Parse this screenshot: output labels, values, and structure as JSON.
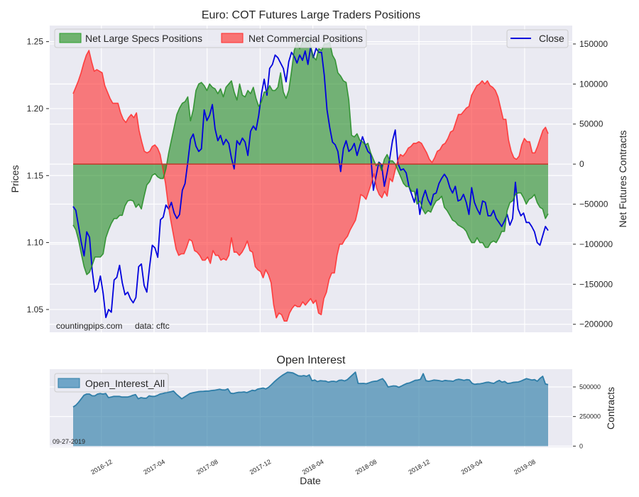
{
  "chart_data": [
    {
      "type": "area",
      "title": "Euro: COT Futures Large Traders Positions",
      "xlabel": "",
      "ylabel_left": "Prices",
      "ylabel_right": "Net Futures Contracts",
      "grid": true,
      "y_left_ticks": [
        "1.05",
        "1.10",
        "1.15",
        "1.20",
        "1.25"
      ],
      "y_left_tick_values": [
        1.05,
        1.1,
        1.15,
        1.2,
        1.25
      ],
      "y_left_lim": [
        1.033,
        1.262
      ],
      "y_right_ticks": [
        "150000",
        "100000",
        "50000",
        "0",
        "−50000",
        "−100000",
        "−150000",
        "−200000"
      ],
      "y_right_tick_values": [
        150000,
        100000,
        50000,
        0,
        -50000,
        -100000,
        -150000,
        -200000
      ],
      "y_right_lim": [
        -210000,
        173000
      ],
      "x_start": "2016-09-27",
      "x_end": "2019-09-24",
      "x_tick_labels": [
        "2016-12",
        "2017-04",
        "2017-08",
        "2017-12",
        "2018-04",
        "2018-08",
        "2018-12",
        "2019-04",
        "2019-08"
      ],
      "x_tick_dates": [
        "2016-12-01",
        "2017-04-01",
        "2017-08-01",
        "2017-12-01",
        "2018-04-01",
        "2018-08-01",
        "2018-12-01",
        "2019-04-01",
        "2019-08-01"
      ],
      "legend": {
        "left": [
          {
            "label": "Net Large Specs Positions",
            "color": "#2ca02c"
          },
          {
            "label": "Net Commercial Positions",
            "color": "#ff2b2b"
          }
        ],
        "right": [
          {
            "label": "Close",
            "color": "#0000dd"
          }
        ],
        "placement_left": "top-left",
        "placement_right": "top-right"
      },
      "annotations": [
        "countingpips.com",
        "data: cftc"
      ],
      "series": [
        {
          "name": "Net Large Specs Positions",
          "axis": "right",
          "values": [
            -76000,
            -82000,
            -95000,
            -112000,
            -128000,
            -138000,
            -135000,
            -126000,
            -116000,
            -116000,
            -116000,
            -112000,
            -92000,
            -82000,
            -74000,
            -68000,
            -68000,
            -64000,
            -64000,
            -52000,
            -46000,
            -45000,
            -46000,
            -54000,
            -50000,
            -56000,
            -40000,
            -26000,
            -22000,
            -14000,
            -12000,
            -16000,
            -18000,
            -18000,
            -6000,
            14000,
            30000,
            46000,
            62000,
            70000,
            76000,
            78000,
            84000,
            54000,
            68000,
            92000,
            100000,
            102000,
            98000,
            92000,
            100000,
            96000,
            94000,
            88000,
            94000,
            84000,
            96000,
            100000,
            104000,
            90000,
            80000,
            100000,
            86000,
            84000,
            92000,
            88000,
            96000,
            82000,
            72000,
            78000,
            90000,
            90000,
            98000,
            92000,
            92000,
            96000,
            114000,
            90000,
            82000,
            92000,
            116000,
            142000,
            152000,
            144000,
            152000,
            152000,
            158000,
            148000,
            134000,
            130000,
            144000,
            142000,
            150000,
            150000,
            152000,
            136000,
            130000,
            114000,
            110000,
            104000,
            102000,
            80000,
            36000,
            34000,
            38000,
            30000,
            28000,
            24000,
            26000,
            14000,
            6000,
            -2000,
            2000,
            -8000,
            6000,
            12000,
            4000,
            4000,
            0,
            -8000,
            -16000,
            -24000,
            -28000,
            -28000,
            -34000,
            -34000,
            -50000,
            -46000,
            -56000,
            -62000,
            -58000,
            -60000,
            -52000,
            -46000,
            -44000,
            -40000,
            -54000,
            -58000,
            -64000,
            -70000,
            -72000,
            -76000,
            -78000,
            -80000,
            -84000,
            -92000,
            -98000,
            -98000,
            -92000,
            -98000,
            -98000,
            -104000,
            -104000,
            -98000,
            -96000,
            -98000,
            -92000,
            -84000,
            -84000,
            -58000,
            -48000,
            -46000,
            -38000,
            -36000,
            -36000,
            -42000,
            -50000,
            -44000,
            -42000,
            -38000,
            -48000,
            -54000,
            -56000,
            -68000,
            -62000
          ]
        },
        {
          "name": "Net Commercial Positions",
          "axis": "right",
          "values": [
            88000,
            96000,
            104000,
            114000,
            126000,
            136000,
            142000,
            128000,
            116000,
            118000,
            116000,
            114000,
            98000,
            90000,
            82000,
            76000,
            76000,
            76000,
            64000,
            56000,
            52000,
            58000,
            62000,
            58000,
            64000,
            42000,
            28000,
            16000,
            14000,
            16000,
            22000,
            24000,
            20000,
            12000,
            -6000,
            -24000,
            -50000,
            -70000,
            -88000,
            -106000,
            -114000,
            -112000,
            -112000,
            -104000,
            -94000,
            -96000,
            -108000,
            -110000,
            -114000,
            -120000,
            -120000,
            -116000,
            -124000,
            -108000,
            -114000,
            -114000,
            -120000,
            -118000,
            -120000,
            -114000,
            -92000,
            -110000,
            -110000,
            -114000,
            -110000,
            -104000,
            -96000,
            -108000,
            -110000,
            -128000,
            -132000,
            -134000,
            -142000,
            -132000,
            -138000,
            -148000,
            -176000,
            -192000,
            -186000,
            -188000,
            -196000,
            -196000,
            -186000,
            -180000,
            -176000,
            -178000,
            -178000,
            -172000,
            -176000,
            -172000,
            -168000,
            -174000,
            -170000,
            -186000,
            -188000,
            -168000,
            -160000,
            -144000,
            -136000,
            -136000,
            -114000,
            -100000,
            -100000,
            -94000,
            -90000,
            -82000,
            -76000,
            -70000,
            -56000,
            -38000,
            -40000,
            -44000,
            -34000,
            -24000,
            -12000,
            -30000,
            -38000,
            -42000,
            -34000,
            -40000,
            -18000,
            -22000,
            -8000,
            4000,
            12000,
            10000,
            14000,
            20000,
            22000,
            26000,
            26000,
            28000,
            26000,
            20000,
            14000,
            6000,
            2000,
            8000,
            16000,
            18000,
            24000,
            26000,
            32000,
            40000,
            42000,
            52000,
            62000,
            62000,
            66000,
            70000,
            72000,
            86000,
            92000,
            98000,
            100000,
            104000,
            100000,
            104000,
            98000,
            96000,
            92000,
            84000,
            70000,
            56000,
            56000,
            30000,
            16000,
            8000,
            6000,
            10000,
            24000,
            32000,
            28000,
            28000,
            14000,
            14000,
            22000,
            32000,
            42000,
            46000,
            38000
          ]
        },
        {
          "name": "Close",
          "axis": "left",
          "values": [
            1.127,
            1.124,
            1.112,
            1.1,
            1.09,
            1.108,
            1.104,
            1.079,
            1.063,
            1.066,
            1.075,
            1.062,
            1.044,
            1.05,
            1.048,
            1.072,
            1.074,
            1.083,
            1.07,
            1.061,
            1.063,
            1.058,
            1.055,
            1.059,
            1.082,
            1.084,
            1.068,
            1.063,
            1.082,
            1.098,
            1.096,
            1.089,
            1.117,
            1.119,
            1.128,
            1.125,
            1.13,
            1.122,
            1.118,
            1.121,
            1.139,
            1.144,
            1.16,
            1.177,
            1.181,
            1.172,
            1.168,
            1.17,
            1.199,
            1.191,
            1.195,
            1.203,
            1.185,
            1.176,
            1.18,
            1.173,
            1.177,
            1.174,
            1.163,
            1.155,
            1.176,
            1.173,
            1.178,
            1.175,
            1.165,
            1.183,
            1.187,
            1.184,
            1.195,
            1.211,
            1.222,
            1.21,
            1.23,
            1.233,
            1.24,
            1.238,
            1.234,
            1.23,
            1.22,
            1.235,
            1.242,
            1.239,
            1.234,
            1.24,
            1.236,
            1.243,
            1.233,
            1.246,
            1.238,
            1.245,
            1.242,
            1.242,
            1.225,
            1.199,
            1.186,
            1.175,
            1.173,
            1.168,
            1.153,
            1.17,
            1.176,
            1.168,
            1.17,
            1.174,
            1.165,
            1.172,
            1.179,
            1.173,
            1.168,
            1.166,
            1.139,
            1.15,
            1.16,
            1.158,
            1.142,
            1.152,
            1.163,
            1.176,
            1.184,
            1.159,
            1.154,
            1.155,
            1.152,
            1.142,
            1.136,
            1.13,
            1.14,
            1.121,
            1.133,
            1.139,
            1.132,
            1.128,
            1.136,
            1.137,
            1.144,
            1.148,
            1.151,
            1.148,
            1.141,
            1.137,
            1.142,
            1.131,
            1.132,
            1.136,
            1.13,
            1.121,
            1.141,
            1.13,
            1.125,
            1.121,
            1.131,
            1.13,
            1.12,
            1.12,
            1.124,
            1.118,
            1.115,
            1.112,
            1.116,
            1.121,
            1.113,
            1.118,
            1.145,
            1.125,
            1.12,
            1.122,
            1.115,
            1.115,
            1.112,
            1.108,
            1.1,
            1.098,
            1.105,
            1.112,
            1.109
          ]
        }
      ]
    },
    {
      "type": "area",
      "title": "Open Interest",
      "xlabel": "Date",
      "ylabel_right": "Contracts",
      "grid": true,
      "y_right_ticks": [
        "0",
        "250000",
        "500000"
      ],
      "y_right_tick_values": [
        0,
        250000,
        500000
      ],
      "y_right_lim": [
        -10000,
        650000
      ],
      "legend": {
        "entries": [
          {
            "label": "Open_Interest_All",
            "color": "#4a90b8"
          }
        ],
        "placement": "top-left"
      },
      "annotations": [
        "09-27-2019"
      ],
      "series": [
        {
          "name": "Open_Interest_All",
          "values": [
            330000,
            345000,
            370000,
            400000,
            430000,
            440000,
            440000,
            425000,
            425000,
            440000,
            445000,
            440000,
            445000,
            410000,
            415000,
            420000,
            420000,
            420000,
            415000,
            415000,
            415000,
            420000,
            430000,
            435000,
            400000,
            410000,
            405000,
            405000,
            425000,
            420000,
            420000,
            428000,
            440000,
            445000,
            450000,
            455000,
            460000,
            465000,
            440000,
            420000,
            400000,
            415000,
            430000,
            445000,
            450000,
            455000,
            460000,
            462000,
            463000,
            465000,
            465000,
            470000,
            472000,
            476000,
            480000,
            475000,
            474000,
            484000,
            448000,
            444000,
            450000,
            455000,
            455000,
            458000,
            452000,
            462000,
            472000,
            468000,
            482000,
            486000,
            491000,
            483000,
            497000,
            518000,
            541000,
            561000,
            580000,
            597000,
            611000,
            624000,
            622000,
            618000,
            606000,
            594000,
            592000,
            596000,
            590000,
            602000,
            553000,
            559000,
            545000,
            553000,
            551000,
            550000,
            541000,
            547000,
            548000,
            543000,
            556000,
            558000,
            551000,
            561000,
            582000,
            604000,
            625000,
            530000,
            529000,
            530000,
            527000,
            535000,
            543000,
            548000,
            550000,
            561000,
            570000,
            542000,
            500000,
            505000,
            509000,
            507000,
            497000,
            508000,
            520000,
            530000,
            535000,
            545000,
            556000,
            558000,
            565000,
            612000,
            552000,
            548000,
            552000,
            558000,
            556000,
            553000,
            548000,
            555000,
            552000,
            551000,
            548000,
            560000,
            565000,
            561000,
            556000,
            562000,
            559000,
            530000,
            522000,
            526000,
            527000,
            531000,
            538000,
            540000,
            534000,
            530000,
            545000,
            555000,
            540000,
            546000,
            530000,
            532000,
            538000,
            540000,
            542000,
            550000,
            560000,
            570000,
            565000,
            558000,
            562000,
            548000,
            572000,
            590000,
            525000,
            520000
          ]
        }
      ]
    }
  ],
  "labels": {
    "main_title": "Euro: COT Futures Large Traders Positions",
    "left_axis": "Prices",
    "right_axis": "Net Futures Contracts",
    "watermark_site": "countingpips.com",
    "watermark_source": "data: cftc",
    "legend_specs": "Net Large Specs Positions",
    "legend_commercial": "Net Commercial Positions",
    "legend_close": "Close",
    "oi_title": "Open Interest",
    "oi_legend": "Open_Interest_All",
    "oi_axis": "Contracts",
    "oi_date": "09-27-2019",
    "x_axis": "Date"
  },
  "colors": {
    "specs": "#2ca02c",
    "specs_fill": "#4c9e4c",
    "commercial": "#ff2b2b",
    "commercial_fill": "#f65a5a",
    "close": "#0000dd",
    "oi_line": "#2f7ea8",
    "oi_fill": "#5f9ec3",
    "plot_bg": "#eaeaf2"
  }
}
